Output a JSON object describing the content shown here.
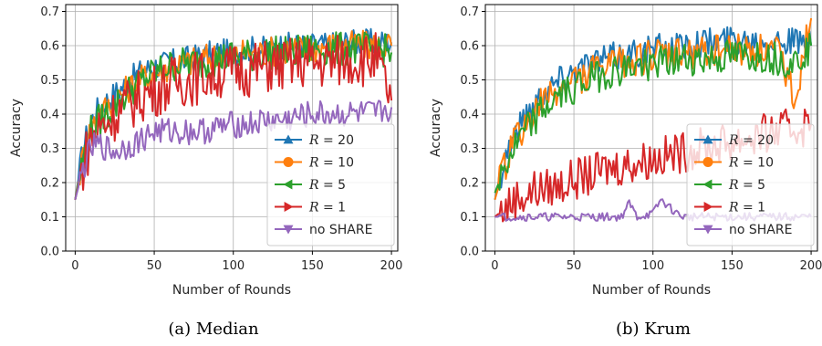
{
  "figure": {
    "width": 901,
    "height": 379
  },
  "chart_data": [
    {
      "type": "line",
      "caption": "(a) Median",
      "xlabel": "Number of Rounds",
      "ylabel": "Accuracy",
      "xlim": [
        -6,
        204
      ],
      "ylim": [
        0.0,
        0.72
      ],
      "xticks": [
        0,
        50,
        100,
        150,
        200
      ],
      "yticks": [
        0.0,
        0.1,
        0.2,
        0.3,
        0.4,
        0.5,
        0.6,
        0.7
      ],
      "grid": true,
      "legend_position": "lower-right",
      "series": [
        {
          "name": "R = 20",
          "name_prefix": "R",
          "name_value": "= 20",
          "color": "#1f77b4",
          "marker": "triangle-up",
          "x": [
            0,
            5,
            10,
            15,
            20,
            25,
            30,
            35,
            40,
            50,
            60,
            70,
            80,
            90,
            100,
            110,
            120,
            130,
            140,
            150,
            160,
            170,
            180,
            190,
            200
          ],
          "y": [
            0.15,
            0.3,
            0.38,
            0.42,
            0.44,
            0.46,
            0.48,
            0.5,
            0.52,
            0.54,
            0.55,
            0.56,
            0.57,
            0.58,
            0.58,
            0.59,
            0.59,
            0.6,
            0.6,
            0.6,
            0.6,
            0.61,
            0.61,
            0.61,
            0.61
          ]
        },
        {
          "name": "R = 10",
          "name_prefix": "R",
          "name_value": "= 10",
          "color": "#ff7f0e",
          "marker": "circle",
          "x": [
            0,
            5,
            10,
            15,
            20,
            25,
            30,
            35,
            40,
            50,
            60,
            70,
            80,
            90,
            100,
            110,
            120,
            130,
            140,
            150,
            160,
            170,
            180,
            190,
            200
          ],
          "y": [
            0.15,
            0.28,
            0.36,
            0.4,
            0.42,
            0.44,
            0.46,
            0.48,
            0.5,
            0.52,
            0.54,
            0.55,
            0.56,
            0.57,
            0.57,
            0.58,
            0.58,
            0.59,
            0.59,
            0.59,
            0.6,
            0.6,
            0.6,
            0.6,
            0.6
          ]
        },
        {
          "name": "R = 5",
          "name_prefix": "R",
          "name_value": "= 5",
          "color": "#2ca02c",
          "marker": "triangle-left",
          "x": [
            0,
            5,
            10,
            15,
            20,
            25,
            30,
            35,
            40,
            50,
            60,
            70,
            80,
            90,
            100,
            110,
            120,
            130,
            140,
            150,
            160,
            170,
            180,
            190,
            200
          ],
          "y": [
            0.15,
            0.27,
            0.35,
            0.38,
            0.4,
            0.42,
            0.45,
            0.47,
            0.49,
            0.52,
            0.54,
            0.55,
            0.55,
            0.56,
            0.57,
            0.57,
            0.58,
            0.58,
            0.58,
            0.59,
            0.59,
            0.59,
            0.59,
            0.59,
            0.58
          ]
        },
        {
          "name": "R = 1",
          "name_prefix": "R",
          "name_value": "= 1",
          "color": "#d62728",
          "marker": "triangle-right",
          "x": [
            0,
            5,
            10,
            15,
            20,
            25,
            30,
            35,
            40,
            50,
            60,
            70,
            80,
            90,
            100,
            110,
            120,
            130,
            140,
            150,
            160,
            170,
            180,
            190,
            200
          ],
          "y": [
            0.15,
            0.25,
            0.33,
            0.36,
            0.38,
            0.4,
            0.42,
            0.43,
            0.45,
            0.47,
            0.49,
            0.5,
            0.51,
            0.52,
            0.53,
            0.53,
            0.54,
            0.54,
            0.55,
            0.55,
            0.55,
            0.56,
            0.56,
            0.56,
            0.44
          ]
        },
        {
          "name": "no SHARE",
          "color": "#9467bd",
          "marker": "triangle-down",
          "x": [
            0,
            5,
            10,
            15,
            20,
            25,
            30,
            35,
            40,
            50,
            60,
            70,
            80,
            90,
            100,
            110,
            120,
            130,
            140,
            150,
            160,
            170,
            180,
            190,
            200
          ],
          "y": [
            0.15,
            0.24,
            0.3,
            0.31,
            0.3,
            0.29,
            0.3,
            0.31,
            0.32,
            0.35,
            0.35,
            0.35,
            0.35,
            0.36,
            0.37,
            0.37,
            0.38,
            0.38,
            0.39,
            0.4,
            0.4,
            0.4,
            0.4,
            0.4,
            0.42
          ]
        }
      ]
    },
    {
      "type": "line",
      "caption": "(b) Krum",
      "xlabel": "Number of Rounds",
      "ylabel": "Accuracy",
      "xlim": [
        -6,
        204
      ],
      "ylim": [
        0.0,
        0.72
      ],
      "xticks": [
        0,
        50,
        100,
        150,
        200
      ],
      "yticks": [
        0.0,
        0.1,
        0.2,
        0.3,
        0.4,
        0.5,
        0.6,
        0.7
      ],
      "grid": true,
      "legend_position": "lower-right",
      "series": [
        {
          "name": "R = 20",
          "name_prefix": "R",
          "name_value": "= 20",
          "color": "#1f77b4",
          "marker": "triangle-up",
          "x": [
            0,
            5,
            10,
            15,
            20,
            25,
            30,
            40,
            50,
            60,
            70,
            80,
            90,
            100,
            110,
            120,
            130,
            140,
            150,
            160,
            170,
            180,
            190,
            200
          ],
          "y": [
            0.15,
            0.25,
            0.32,
            0.36,
            0.4,
            0.43,
            0.46,
            0.5,
            0.53,
            0.55,
            0.56,
            0.57,
            0.58,
            0.59,
            0.59,
            0.6,
            0.61,
            0.61,
            0.62,
            0.62,
            0.62,
            0.62,
            0.61,
            0.6
          ]
        },
        {
          "name": "R = 10",
          "name_prefix": "R",
          "name_value": "= 10",
          "color": "#ff7f0e",
          "marker": "circle",
          "x": [
            0,
            5,
            10,
            15,
            20,
            25,
            30,
            40,
            50,
            60,
            70,
            80,
            90,
            100,
            110,
            120,
            130,
            140,
            150,
            160,
            170,
            180,
            190,
            200
          ],
          "y": [
            0.15,
            0.23,
            0.3,
            0.34,
            0.37,
            0.4,
            0.43,
            0.47,
            0.5,
            0.52,
            0.54,
            0.55,
            0.56,
            0.57,
            0.57,
            0.58,
            0.58,
            0.59,
            0.59,
            0.59,
            0.59,
            0.58,
            0.45,
            0.68
          ]
        },
        {
          "name": "R = 5",
          "name_prefix": "R",
          "name_value": "= 5",
          "color": "#2ca02c",
          "marker": "triangle-left",
          "x": [
            0,
            5,
            10,
            15,
            20,
            25,
            30,
            40,
            50,
            60,
            70,
            80,
            90,
            100,
            110,
            120,
            130,
            140,
            150,
            160,
            170,
            180,
            190,
            200
          ],
          "y": [
            0.17,
            0.23,
            0.28,
            0.32,
            0.35,
            0.38,
            0.41,
            0.45,
            0.48,
            0.5,
            0.52,
            0.53,
            0.54,
            0.55,
            0.55,
            0.56,
            0.56,
            0.56,
            0.57,
            0.57,
            0.57,
            0.56,
            0.55,
            0.6
          ]
        },
        {
          "name": "R = 1",
          "name_prefix": "R",
          "name_value": "= 1",
          "color": "#d62728",
          "marker": "triangle-right",
          "x": [
            0,
            5,
            10,
            15,
            20,
            25,
            30,
            40,
            50,
            60,
            70,
            80,
            90,
            100,
            110,
            120,
            130,
            140,
            150,
            160,
            170,
            180,
            190,
            200
          ],
          "y": [
            0.1,
            0.12,
            0.14,
            0.16,
            0.16,
            0.18,
            0.18,
            0.19,
            0.21,
            0.22,
            0.24,
            0.25,
            0.26,
            0.27,
            0.28,
            0.29,
            0.3,
            0.31,
            0.32,
            0.33,
            0.34,
            0.35,
            0.36,
            0.37
          ]
        },
        {
          "name": "no SHARE",
          "color": "#9467bd",
          "marker": "triangle-down",
          "x": [
            0,
            10,
            20,
            30,
            40,
            50,
            60,
            70,
            80,
            85,
            90,
            100,
            105,
            110,
            115,
            120,
            130,
            140,
            150,
            160,
            170,
            180,
            190,
            200
          ],
          "y": [
            0.1,
            0.1,
            0.1,
            0.1,
            0.1,
            0.1,
            0.1,
            0.1,
            0.1,
            0.14,
            0.1,
            0.11,
            0.15,
            0.13,
            0.11,
            0.1,
            0.1,
            0.1,
            0.1,
            0.1,
            0.1,
            0.1,
            0.1,
            0.1
          ]
        }
      ]
    }
  ]
}
